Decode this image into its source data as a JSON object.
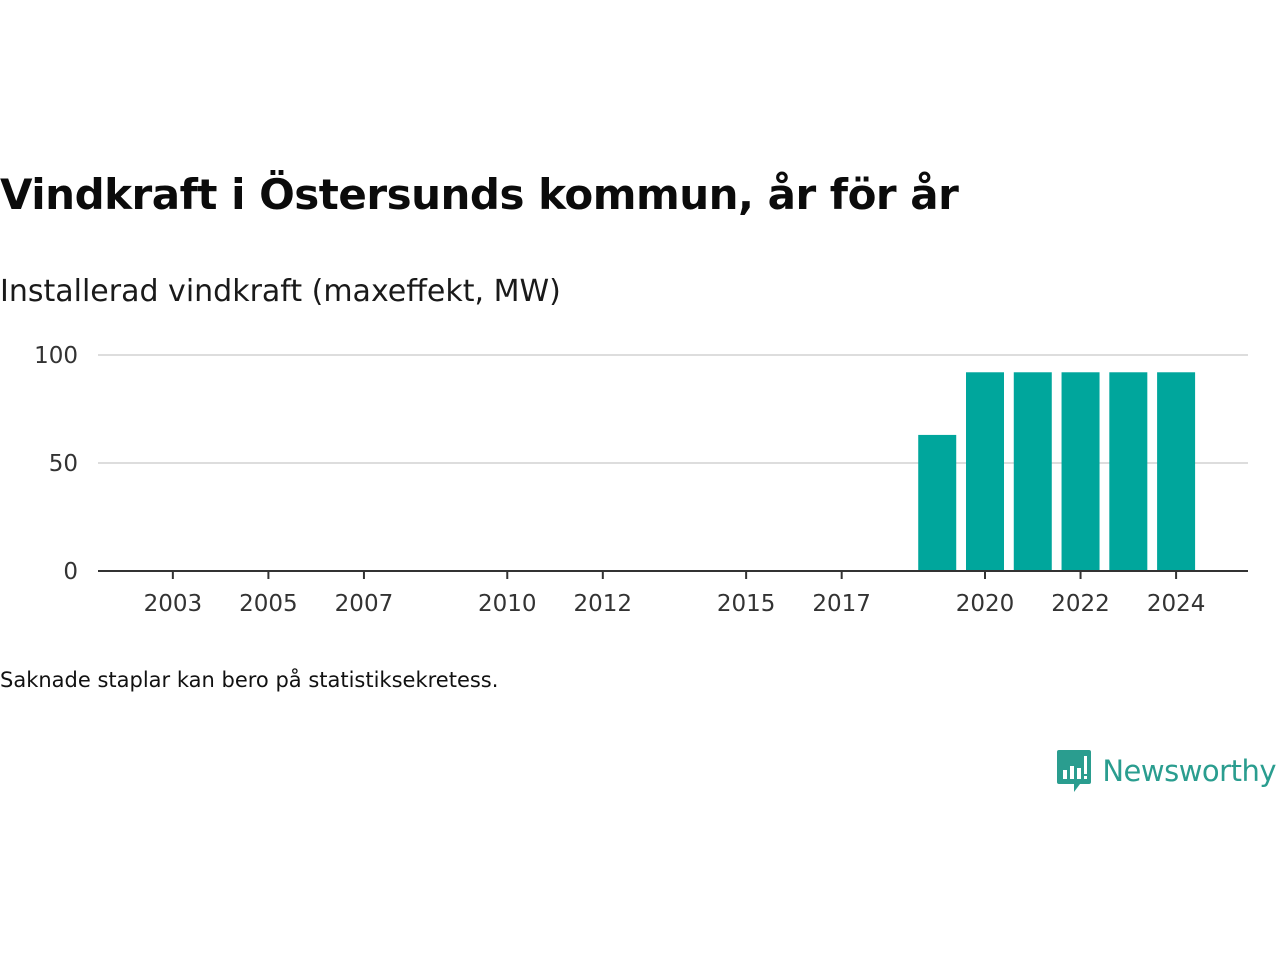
{
  "title": "Vindkraft i Östersunds kommun, år för år",
  "subtitle": "Installerad vindkraft (maxeffekt, MW)",
  "footnote": "Saknade staplar kan bero på statistiksekretess.",
  "brand": {
    "name": "Newsworthy",
    "color": "#2a9d8f",
    "icon": "bar-chart-speech-bubble-icon"
  },
  "chart_data": {
    "type": "bar",
    "title": "Vindkraft i Östersunds kommun, år för år",
    "subtitle": "Installerad vindkraft (maxeffekt, MW)",
    "xlabel": "",
    "ylabel": "",
    "ylim": [
      0,
      100
    ],
    "yticks": [
      0,
      50,
      100
    ],
    "xticks": [
      "2003",
      "2005",
      "2007",
      "2010",
      "2012",
      "2015",
      "2017",
      "2020",
      "2022",
      "2024"
    ],
    "x_range": [
      2001,
      2025
    ],
    "grid": true,
    "bar_color": "#00a69c",
    "categories": [
      "2019",
      "2020",
      "2021",
      "2022",
      "2023",
      "2024"
    ],
    "values": [
      63,
      92,
      92,
      92,
      92,
      92
    ]
  }
}
